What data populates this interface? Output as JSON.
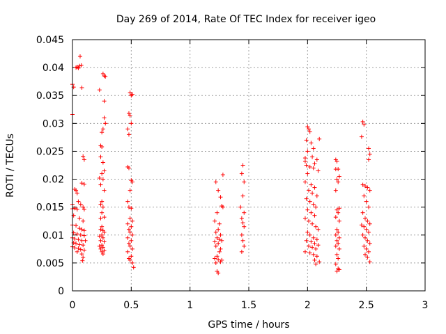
{
  "chart_data": {
    "type": "scatter",
    "title": "Day 269 of 2014, Rate Of TEC Index for receiver igeo",
    "xlabel": "GPS time / hours",
    "ylabel": "ROTI / TECUs",
    "xlim": [
      0,
      3
    ],
    "ylim": [
      0,
      0.045
    ],
    "xticks": [
      "0",
      "0.5",
      "1",
      "1.5",
      "2",
      "2.5",
      "3"
    ],
    "yticks": [
      "0",
      "0.005",
      "0.01",
      "0.015",
      "0.02",
      "0.025",
      "0.03",
      "0.035",
      "0.04",
      "0.045"
    ],
    "grid": true,
    "marker": "+",
    "color": "#ff0000",
    "series": [
      {
        "name": "ROTI",
        "points": [
          [
            0.0,
            0.0316
          ],
          [
            0.0,
            0.037
          ],
          [
            0.01,
            0.0365
          ],
          [
            0.03,
            0.04
          ],
          [
            0.04,
            0.0401
          ],
          [
            0.05,
            0.0399
          ],
          [
            0.06,
            0.0403
          ],
          [
            0.065,
            0.042
          ],
          [
            0.075,
            0.0404
          ],
          [
            0.08,
            0.0364
          ],
          [
            0.09,
            0.0241
          ],
          [
            0.1,
            0.0235
          ],
          [
            0.08,
            0.0193
          ],
          [
            0.1,
            0.0191
          ],
          [
            0.02,
            0.0182
          ],
          [
            0.03,
            0.018
          ],
          [
            0.04,
            0.0175
          ],
          [
            0.0,
            0.0155
          ],
          [
            0.05,
            0.016
          ],
          [
            0.07,
            0.0155
          ],
          [
            0.09,
            0.015
          ],
          [
            0.0,
            0.0147
          ],
          [
            0.02,
            0.0148
          ],
          [
            0.04,
            0.0146
          ],
          [
            0.1,
            0.0146
          ],
          [
            0.01,
            0.0135
          ],
          [
            0.06,
            0.013
          ],
          [
            0.09,
            0.0125
          ],
          [
            0.0,
            0.0118
          ],
          [
            0.03,
            0.0117
          ],
          [
            0.06,
            0.0112
          ],
          [
            0.08,
            0.011
          ],
          [
            0.1,
            0.0108
          ],
          [
            0.01,
            0.0104
          ],
          [
            0.04,
            0.0102
          ],
          [
            0.07,
            0.01
          ],
          [
            0.1,
            0.0099
          ],
          [
            0.0,
            0.0095
          ],
          [
            0.02,
            0.0093
          ],
          [
            0.05,
            0.0092
          ],
          [
            0.08,
            0.009
          ],
          [
            0.11,
            0.009
          ],
          [
            0.01,
            0.0086
          ],
          [
            0.03,
            0.0085
          ],
          [
            0.06,
            0.0083
          ],
          [
            0.09,
            0.0082
          ],
          [
            0.0,
            0.0079
          ],
          [
            0.02,
            0.0077
          ],
          [
            0.05,
            0.0076
          ],
          [
            0.07,
            0.0074
          ],
          [
            0.1,
            0.0073
          ],
          [
            0.04,
            0.007
          ],
          [
            0.08,
            0.0066
          ],
          [
            0.09,
            0.006
          ],
          [
            0.085,
            0.0054
          ],
          [
            0.23,
            0.036
          ],
          [
            0.26,
            0.0389
          ],
          [
            0.27,
            0.0385
          ],
          [
            0.28,
            0.0384
          ],
          [
            0.27,
            0.034
          ],
          [
            0.27,
            0.031
          ],
          [
            0.28,
            0.03
          ],
          [
            0.26,
            0.029
          ],
          [
            0.25,
            0.0284
          ],
          [
            0.24,
            0.026
          ],
          [
            0.25,
            0.0258
          ],
          [
            0.24,
            0.024
          ],
          [
            0.26,
            0.023
          ],
          [
            0.27,
            0.0215
          ],
          [
            0.25,
            0.021
          ],
          [
            0.23,
            0.0202
          ],
          [
            0.26,
            0.02
          ],
          [
            0.24,
            0.019
          ],
          [
            0.27,
            0.018
          ],
          [
            0.25,
            0.016
          ],
          [
            0.24,
            0.0155
          ],
          [
            0.26,
            0.015
          ],
          [
            0.25,
            0.014
          ],
          [
            0.24,
            0.013
          ],
          [
            0.27,
            0.0132
          ],
          [
            0.25,
            0.0115
          ],
          [
            0.24,
            0.011
          ],
          [
            0.26,
            0.0108
          ],
          [
            0.27,
            0.0105
          ],
          [
            0.25,
            0.01
          ],
          [
            0.23,
            0.0098
          ],
          [
            0.26,
            0.0095
          ],
          [
            0.24,
            0.009
          ],
          [
            0.27,
            0.0088
          ],
          [
            0.25,
            0.0082
          ],
          [
            0.23,
            0.008
          ],
          [
            0.26,
            0.0078
          ],
          [
            0.24,
            0.0075
          ],
          [
            0.27,
            0.0072
          ],
          [
            0.25,
            0.007
          ],
          [
            0.26,
            0.0066
          ],
          [
            0.49,
            0.0355
          ],
          [
            0.5,
            0.035
          ],
          [
            0.51,
            0.0352
          ],
          [
            0.48,
            0.0318
          ],
          [
            0.49,
            0.0314
          ],
          [
            0.5,
            0.03
          ],
          [
            0.47,
            0.029
          ],
          [
            0.48,
            0.028
          ],
          [
            0.47,
            0.0222
          ],
          [
            0.48,
            0.022
          ],
          [
            0.5,
            0.0198
          ],
          [
            0.51,
            0.0195
          ],
          [
            0.49,
            0.018
          ],
          [
            0.47,
            0.016
          ],
          [
            0.48,
            0.015
          ],
          [
            0.5,
            0.0148
          ],
          [
            0.49,
            0.013
          ],
          [
            0.51,
            0.0125
          ],
          [
            0.47,
            0.012
          ],
          [
            0.5,
            0.0115
          ],
          [
            0.48,
            0.011
          ],
          [
            0.49,
            0.0105
          ],
          [
            0.51,
            0.01
          ],
          [
            0.47,
            0.0095
          ],
          [
            0.5,
            0.009
          ],
          [
            0.48,
            0.0085
          ],
          [
            0.49,
            0.008
          ],
          [
            0.51,
            0.0075
          ],
          [
            0.47,
            0.007
          ],
          [
            0.5,
            0.0062
          ],
          [
            0.48,
            0.0058
          ],
          [
            0.49,
            0.0055
          ],
          [
            0.51,
            0.005
          ],
          [
            0.52,
            0.0042
          ],
          [
            1.22,
            0.0195
          ],
          [
            1.24,
            0.018
          ],
          [
            1.26,
            0.0168
          ],
          [
            1.27,
            0.0152
          ],
          [
            1.28,
            0.015
          ],
          [
            1.23,
            0.014
          ],
          [
            1.21,
            0.0125
          ],
          [
            1.25,
            0.012
          ],
          [
            1.24,
            0.011
          ],
          [
            1.22,
            0.0105
          ],
          [
            1.26,
            0.01
          ],
          [
            1.23,
            0.0095
          ],
          [
            1.25,
            0.0092
          ],
          [
            1.27,
            0.009
          ],
          [
            1.21,
            0.0088
          ],
          [
            1.24,
            0.0085
          ],
          [
            1.22,
            0.008
          ],
          [
            1.26,
            0.0075
          ],
          [
            1.25,
            0.007
          ],
          [
            1.23,
            0.0062
          ],
          [
            1.21,
            0.0058
          ],
          [
            1.24,
            0.0056
          ],
          [
            1.26,
            0.0052
          ],
          [
            1.22,
            0.005
          ],
          [
            1.27,
            0.0055
          ],
          [
            1.23,
            0.0035
          ],
          [
            1.24,
            0.0032
          ],
          [
            1.28,
            0.0208
          ],
          [
            1.45,
            0.0225
          ],
          [
            1.44,
            0.021
          ],
          [
            1.46,
            0.0195
          ],
          [
            1.45,
            0.017
          ],
          [
            1.43,
            0.015
          ],
          [
            1.46,
            0.014
          ],
          [
            1.44,
            0.013
          ],
          [
            1.45,
            0.0122
          ],
          [
            1.46,
            0.0115
          ],
          [
            1.44,
            0.01
          ],
          [
            1.45,
            0.009
          ],
          [
            1.46,
            0.008
          ],
          [
            1.44,
            0.007
          ],
          [
            1.98,
            0.0232
          ],
          [
            2.0,
            0.0294
          ],
          [
            2.01,
            0.029
          ],
          [
            2.02,
            0.0285
          ],
          [
            1.99,
            0.027
          ],
          [
            2.0,
            0.025
          ],
          [
            1.98,
            0.0238
          ],
          [
            2.03,
            0.0265
          ],
          [
            2.05,
            0.0255
          ],
          [
            2.04,
            0.024
          ],
          [
            2.06,
            0.0228
          ],
          [
            1.99,
            0.0225
          ],
          [
            2.02,
            0.0222
          ],
          [
            2.05,
            0.022
          ],
          [
            2.08,
            0.0235
          ],
          [
            2.1,
            0.0272
          ],
          [
            2.09,
            0.0215
          ],
          [
            2.0,
            0.021
          ],
          [
            1.98,
            0.0195
          ],
          [
            2.03,
            0.019
          ],
          [
            2.06,
            0.0185
          ],
          [
            2.01,
            0.018
          ],
          [
            2.04,
            0.0175
          ],
          [
            2.08,
            0.017
          ],
          [
            1.99,
            0.0165
          ],
          [
            2.02,
            0.016
          ],
          [
            2.05,
            0.0155
          ],
          [
            2.07,
            0.015
          ],
          [
            2.0,
            0.0145
          ],
          [
            2.03,
            0.014
          ],
          [
            2.06,
            0.0135
          ],
          [
            1.98,
            0.013
          ],
          [
            2.01,
            0.0125
          ],
          [
            2.04,
            0.012
          ],
          [
            2.07,
            0.0115
          ],
          [
            2.09,
            0.011
          ],
          [
            2.0,
            0.0105
          ],
          [
            2.02,
            0.01
          ],
          [
            2.05,
            0.0095
          ],
          [
            2.08,
            0.0092
          ],
          [
            1.99,
            0.009
          ],
          [
            2.03,
            0.0088
          ],
          [
            2.06,
            0.0085
          ],
          [
            2.09,
            0.0082
          ],
          [
            2.01,
            0.008
          ],
          [
            2.04,
            0.0078
          ],
          [
            2.07,
            0.0075
          ],
          [
            1.98,
            0.007
          ],
          [
            2.02,
            0.0068
          ],
          [
            2.05,
            0.0065
          ],
          [
            2.08,
            0.0062
          ],
          [
            2.06,
            0.0055
          ],
          [
            2.1,
            0.0052
          ],
          [
            2.07,
            0.0048
          ],
          [
            2.24,
            0.0235
          ],
          [
            2.25,
            0.0232
          ],
          [
            2.26,
            0.0218
          ],
          [
            2.24,
            0.0218
          ],
          [
            2.27,
            0.0205
          ],
          [
            2.25,
            0.02
          ],
          [
            2.26,
            0.0195
          ],
          [
            2.24,
            0.018
          ],
          [
            2.27,
            0.0148
          ],
          [
            2.25,
            0.0145
          ],
          [
            2.26,
            0.014
          ],
          [
            2.24,
            0.0132
          ],
          [
            2.27,
            0.0125
          ],
          [
            2.25,
            0.011
          ],
          [
            2.26,
            0.0105
          ],
          [
            2.24,
            0.01
          ],
          [
            2.27,
            0.0095
          ],
          [
            2.25,
            0.009
          ],
          [
            2.26,
            0.0085
          ],
          [
            2.24,
            0.008
          ],
          [
            2.27,
            0.0075
          ],
          [
            2.25,
            0.0065
          ],
          [
            2.26,
            0.0058
          ],
          [
            2.24,
            0.0048
          ],
          [
            2.26,
            0.004
          ],
          [
            2.25,
            0.0035
          ],
          [
            2.27,
            0.0038
          ],
          [
            2.47,
            0.0303
          ],
          [
            2.48,
            0.0298
          ],
          [
            2.46,
            0.0276
          ],
          [
            2.52,
            0.0255
          ],
          [
            2.53,
            0.0245
          ],
          [
            2.52,
            0.0235
          ],
          [
            2.47,
            0.019
          ],
          [
            2.49,
            0.0188
          ],
          [
            2.51,
            0.0185
          ],
          [
            2.53,
            0.018
          ],
          [
            2.48,
            0.017
          ],
          [
            2.5,
            0.016
          ],
          [
            2.52,
            0.015
          ],
          [
            2.47,
            0.014
          ],
          [
            2.49,
            0.013
          ],
          [
            2.51,
            0.0125
          ],
          [
            2.53,
            0.012
          ],
          [
            2.46,
            0.0118
          ],
          [
            2.48,
            0.0115
          ],
          [
            2.5,
            0.011
          ],
          [
            2.52,
            0.0105
          ],
          [
            2.47,
            0.01
          ],
          [
            2.49,
            0.0095
          ],
          [
            2.51,
            0.009
          ],
          [
            2.53,
            0.0085
          ],
          [
            2.48,
            0.008
          ],
          [
            2.5,
            0.0075
          ],
          [
            2.52,
            0.007
          ],
          [
            2.49,
            0.0065
          ],
          [
            2.51,
            0.006
          ],
          [
            2.53,
            0.0052
          ]
        ]
      }
    ]
  }
}
